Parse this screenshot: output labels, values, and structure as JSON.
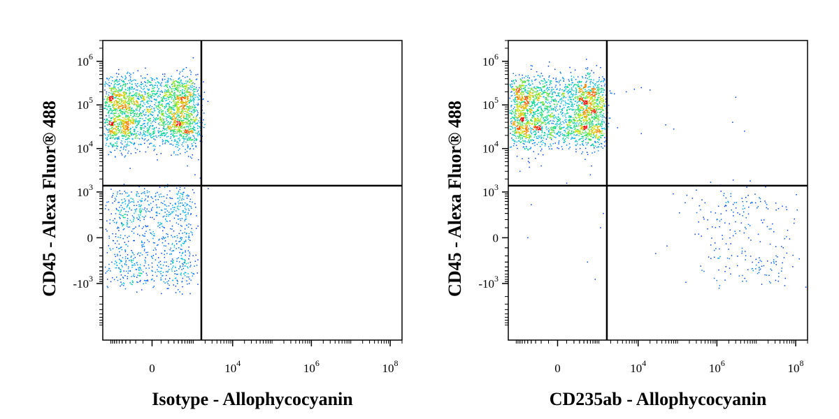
{
  "chart_data": [
    {
      "type": "scatter",
      "title": "",
      "xlabel": "Isotype - Allophycocyanin",
      "ylabel": "CD45 - Alexa Fluor® 488",
      "x_scale": "biexponential",
      "y_scale": "biexponential",
      "xlim": [
        -1600,
        200000000
      ],
      "ylim": [
        -20000,
        3000000
      ],
      "x_ticks": [
        {
          "value": 0,
          "base": "0",
          "exp": ""
        },
        {
          "value": 10000,
          "base": "10",
          "exp": "4"
        },
        {
          "value": 1000000,
          "base": "10",
          "exp": "6"
        },
        {
          "value": 100000000,
          "base": "10",
          "exp": "8"
        }
      ],
      "y_ticks": [
        {
          "value": -1000,
          "base": "-10",
          "exp": "3"
        },
        {
          "value": 0,
          "base": "0",
          "exp": ""
        },
        {
          "value": 1000,
          "base": "10",
          "exp": "3"
        },
        {
          "value": 10000,
          "base": "10",
          "exp": "4"
        },
        {
          "value": 100000,
          "base": "10",
          "exp": "5"
        },
        {
          "value": 1000000,
          "base": "10",
          "exp": "6"
        }
      ],
      "gate": {
        "x": 1600,
        "y": 1400
      },
      "populations": [
        {
          "x_center": 0,
          "x_spread": 600,
          "y_center": 150000,
          "y_spread": 0.12,
          "count": 1300
        },
        {
          "x_center": 0,
          "x_spread": 650,
          "y_center": 32000,
          "y_spread": 0.12,
          "count": 1300
        },
        {
          "x_center": 0,
          "x_spread": 500,
          "y_center": 0,
          "y_spread": 500,
          "count": 900
        }
      ],
      "sparse_points": [
        [
          700,
          4000
        ],
        [
          1100,
          2500
        ],
        [
          -300,
          3500
        ],
        [
          2400,
          1200
        ],
        [
          -200,
          8000
        ],
        [
          1500,
          2100
        ],
        [
          900,
          6000
        ]
      ]
    },
    {
      "type": "scatter",
      "title": "",
      "xlabel": "CD235ab - Allophycocyanin",
      "ylabel": "CD45 - Alexa Fluor® 488",
      "x_scale": "biexponential",
      "y_scale": "biexponential",
      "xlim": [
        -1600,
        200000000
      ],
      "ylim": [
        -20000,
        3000000
      ],
      "x_ticks": [
        {
          "value": 0,
          "base": "0",
          "exp": ""
        },
        {
          "value": 10000,
          "base": "10",
          "exp": "4"
        },
        {
          "value": 1000000,
          "base": "10",
          "exp": "6"
        },
        {
          "value": 100000000,
          "base": "10",
          "exp": "8"
        }
      ],
      "y_ticks": [
        {
          "value": -1000,
          "base": "-10",
          "exp": "3"
        },
        {
          "value": 0,
          "base": "0",
          "exp": ""
        },
        {
          "value": 1000,
          "base": "10",
          "exp": "3"
        },
        {
          "value": 10000,
          "base": "10",
          "exp": "4"
        },
        {
          "value": 100000,
          "base": "10",
          "exp": "5"
        },
        {
          "value": 1000000,
          "base": "10",
          "exp": "6"
        }
      ],
      "gate": {
        "x": 1600,
        "y": 1400
      },
      "populations": [
        {
          "x_center": 0,
          "x_spread": 650,
          "y_center": 150000,
          "y_spread": 0.12,
          "count": 1300
        },
        {
          "x_center": 0,
          "x_spread": 650,
          "y_center": 32000,
          "y_spread": 0.12,
          "count": 1300
        },
        {
          "x_center": 5500000,
          "x_spread": 0.35,
          "y_center": 0,
          "y_spread": 500,
          "count": 240
        }
      ],
      "sparse_points": [
        [
          2500,
          180000
        ],
        [
          5000,
          200000
        ],
        [
          8000,
          230000
        ],
        [
          12000,
          250000
        ],
        [
          20000,
          220000
        ],
        [
          3000,
          30000
        ],
        [
          12000,
          22000
        ],
        [
          50000,
          35000
        ],
        [
          80000,
          28000
        ],
        [
          3000000,
          150000
        ],
        [
          2500000,
          40000
        ],
        [
          5000000,
          25000
        ],
        [
          -800,
          3000
        ],
        [
          600,
          2500
        ],
        [
          100,
          1600
        ],
        [
          -400,
          500
        ],
        [
          500,
          -300
        ],
        [
          -500,
          0
        ],
        [
          1100,
          100
        ],
        [
          800,
          -800
        ],
        [
          1300,
          300
        ],
        [
          -200,
          4000
        ],
        [
          7000000,
          1800
        ]
      ]
    }
  ]
}
